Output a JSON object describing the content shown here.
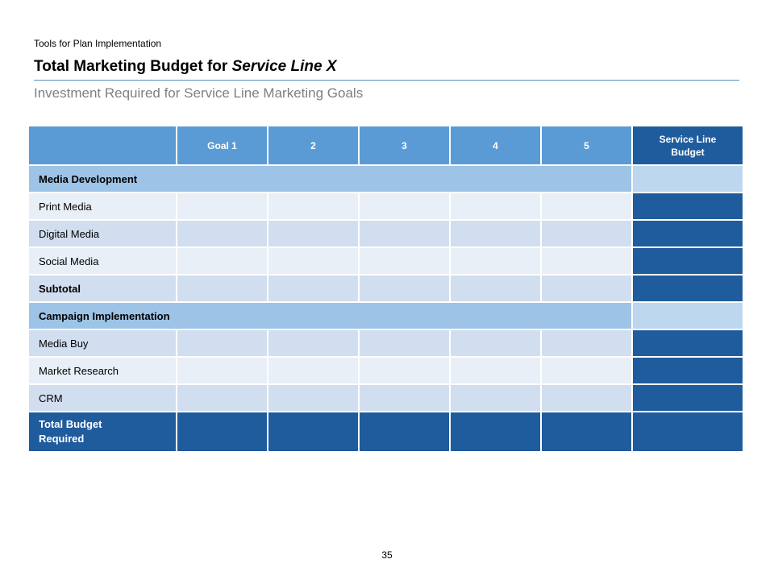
{
  "header": {
    "overline": "Tools for Plan Implementation",
    "title_plain": "Total Marketing Budget for ",
    "title_emphasis": "Service Line X",
    "subtitle": "Investment Required for Service Line Marketing Goals"
  },
  "table": {
    "columns": {
      "goal1": "Goal 1",
      "goal2": "2",
      "goal3": "3",
      "goal4": "4",
      "goal5": "5",
      "budget_line1": "Service Line",
      "budget_line2": "Budget"
    },
    "sections": {
      "media_development": "Media Development",
      "campaign_implementation": "Campaign Implementation"
    },
    "rows": {
      "print_media": "Print Media",
      "digital_media": "Digital Media",
      "social_media": "Social Media",
      "subtotal": "Subtotal",
      "media_buy": "Media Buy",
      "market_research": "Market Research",
      "crm": "CRM"
    },
    "total": {
      "line1": "Total  Budget",
      "line2": "Required"
    }
  },
  "footer": {
    "page_number": "35"
  },
  "colors": {
    "header_blue": "#5b9bd5",
    "dark_blue": "#1f5c9e",
    "section_blue": "#9dc3e6",
    "row_light": "#e9eff7",
    "row_dark": "#d1deef"
  }
}
